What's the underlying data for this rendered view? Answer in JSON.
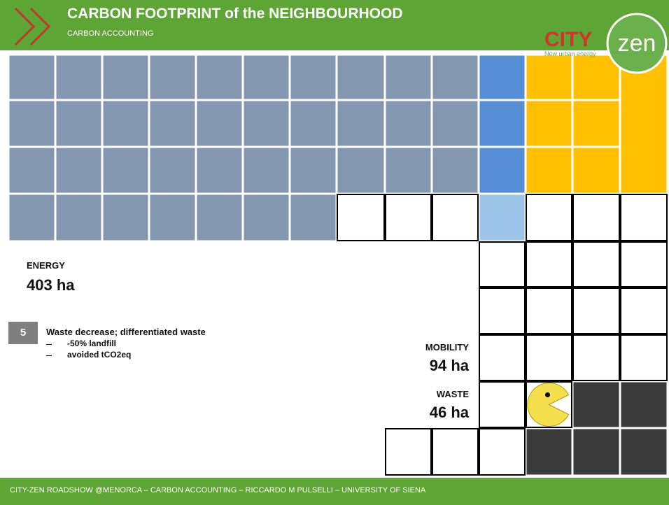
{
  "header": {
    "title": "CARBON FOOTPRINT of the NEIGHBOURHOOD",
    "subtitle": "CARBON ACCOUNTING"
  },
  "logo": {
    "city": "CITY",
    "zen": "zen",
    "tagline": "New urban energy"
  },
  "energy": {
    "label": "ENERGY",
    "value": "403 ha"
  },
  "mobility": {
    "label": "MOBILITY",
    "value": "94 ha"
  },
  "waste": {
    "label": "WASTE",
    "value": "46 ha"
  },
  "action": {
    "number": "5",
    "title": "Waste decrease; differentiated waste",
    "items": [
      "-50% landfill",
      "avoided tCO2eq"
    ]
  },
  "footer": "CITY-ZEN ROADSHOW @MENORCA – CARBON ACCOUNTING – RICCARDO M PULSELLI – UNIVERSITY OF SIENA"
}
